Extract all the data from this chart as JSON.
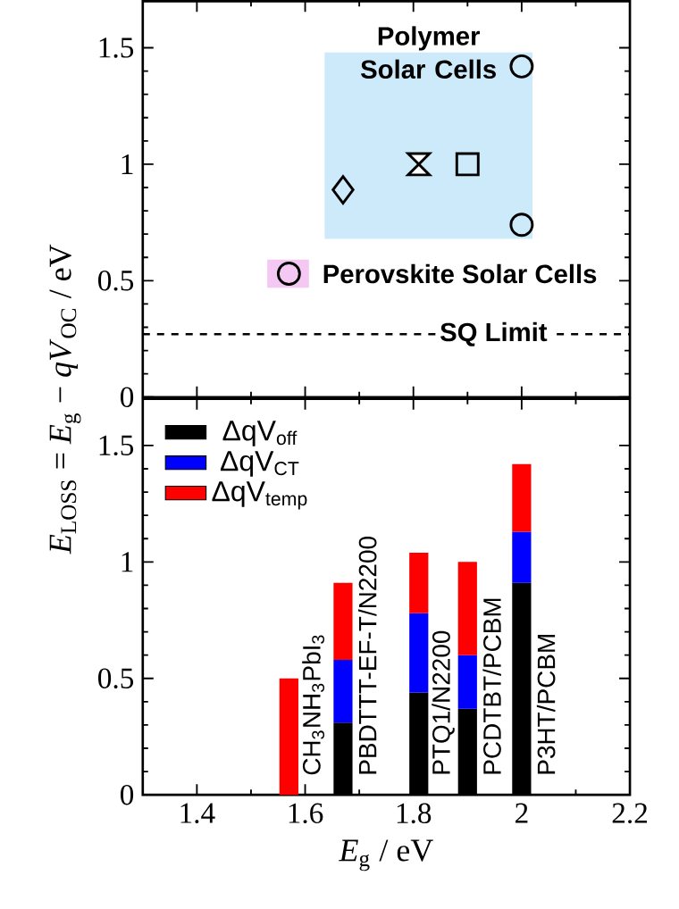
{
  "chart_data": [
    {
      "type": "scatter",
      "xlim": [
        1.3,
        2.2
      ],
      "ylim": [
        0,
        1.7
      ],
      "xticks": [
        1.4,
        1.6,
        1.8,
        2,
        2.2
      ],
      "yticks": [
        0,
        0.5,
        1,
        1.5
      ],
      "tick_labels": "y",
      "series": [
        {
          "color": "#000000",
          "marker": "diamond",
          "x": [
            1.67
          ],
          "values": [
            0.89
          ]
        },
        {
          "color": "#000000",
          "x": [
            1.81
          ],
          "values": [
            1.0
          ]
        },
        {
          "color": "#000000",
          "marker": "square",
          "x": [
            1.9
          ],
          "values": [
            1.0
          ]
        },
        {
          "color": "#000000",
          "marker": "circle",
          "x": [
            2.0,
            2.0
          ],
          "values": [
            1.42,
            0.74
          ]
        },
        {
          "name": "Perovskite Solar Cells",
          "color": "#000000",
          "marker": "circle",
          "x": [
            1.57
          ],
          "values": [
            0.53
          ]
        }
      ],
      "bands": [
        {
          "axis": "x",
          "from": 1.636,
          "to": 2.02,
          "label": "Polymer Solar Cells",
          "color": "#cdeafb"
        },
        {
          "axis": "x",
          "from": 1.53,
          "to": 1.607,
          "color": "#f5c8f3"
        }
      ],
      "ref_lines": [
        {
          "axis": "y",
          "value": 0.27,
          "label": "SQ Limit",
          "line_style": "dashed"
        }
      ]
    },
    {
      "type": "bar",
      "stacked": true,
      "x": [
        1.57,
        1.67,
        1.81,
        1.9,
        2.0
      ],
      "xlim": [
        1.3,
        2.2
      ],
      "ylim": [
        0,
        1.7
      ],
      "xticks": [
        1.4,
        1.6,
        1.8,
        2,
        2.2
      ],
      "yticks": [
        0,
        0.5,
        1,
        1.5
      ],
      "xlabel": "*E*$_{g}$ / eV",
      "ylabel": "*E*$_{LOSS}$ = *E*$_{g}$ − *qV*$_{OC}$ / eV",
      "legend": "top left",
      "series": [
        {
          "name": "ΔqV$_{off}$",
          "color": "#000000",
          "values": [
            null,
            0.31,
            0.44,
            0.37,
            0.91
          ]
        },
        {
          "name": "ΔqV$_{CT}$",
          "color": "#0000ff",
          "values": [
            null,
            0.27,
            0.34,
            0.23,
            0.22
          ]
        },
        {
          "name": "ΔqV$_{temp}$",
          "color": "#ff0000",
          "values": [
            0.5,
            0.33,
            0.26,
            0.4,
            0.29
          ]
        }
      ],
      "annotations": [
        "CH$_{3}$NH$_{3}$PbI$_{3}$",
        "PBDTTT-EF-T/N2200",
        "PTQ1/N2200",
        "PCDTBT/PCBM",
        "P3HT/PCBM"
      ]
    }
  ]
}
